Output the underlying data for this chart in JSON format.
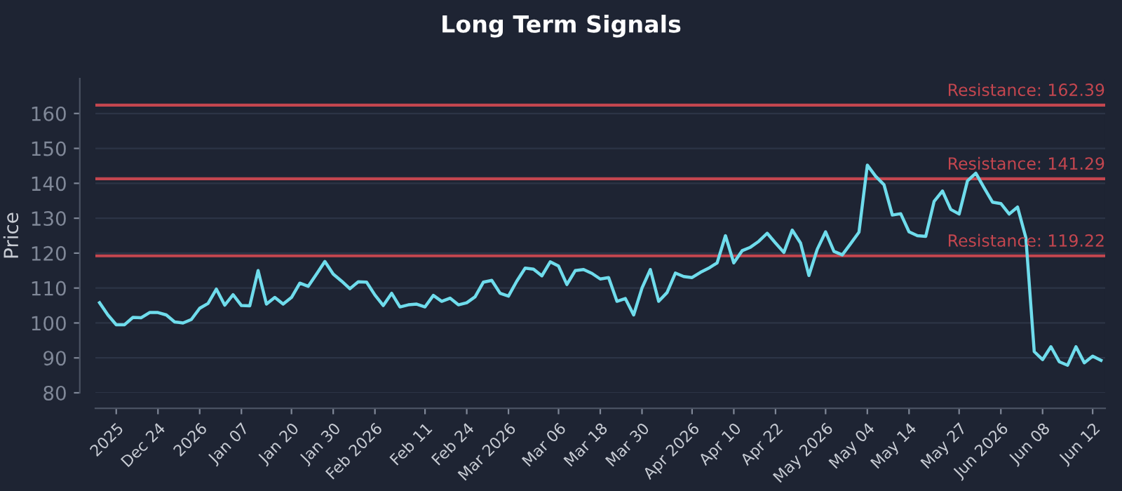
{
  "chart_data": {
    "type": "line",
    "title": "Long Term Signals",
    "ylabel": "Price",
    "categories": [
      null,
      null,
      "2025",
      null,
      null,
      null,
      null,
      "Dec 24",
      null,
      null,
      null,
      null,
      "2026",
      null,
      null,
      null,
      null,
      "Jan 07",
      null,
      null,
      null,
      null,
      null,
      "Jan 20",
      null,
      null,
      null,
      null,
      "Jan 30",
      null,
      null,
      null,
      null,
      "Feb 2026",
      null,
      null,
      null,
      null,
      null,
      "Feb 11",
      null,
      null,
      null,
      null,
      "Feb 24",
      null,
      null,
      null,
      null,
      "Mar 2026",
      null,
      null,
      null,
      null,
      null,
      "Mar 06",
      null,
      null,
      null,
      null,
      "Mar 18",
      null,
      null,
      null,
      null,
      "Mar 30",
      null,
      null,
      null,
      null,
      null,
      "Apr 2026",
      null,
      null,
      null,
      null,
      "Apr 10",
      null,
      null,
      null,
      null,
      "Apr 22",
      null,
      null,
      null,
      null,
      null,
      "May 2026",
      null,
      null,
      null,
      null,
      "May 04",
      null,
      null,
      null,
      null,
      "May 14",
      null,
      null,
      null,
      null,
      null,
      "May 27",
      null,
      null,
      null,
      null,
      "Jun 2026",
      null,
      null,
      null,
      null,
      "Jun 08",
      null,
      null,
      null,
      null,
      null,
      "Jun 12",
      null
    ],
    "series": [
      {
        "color": "#6fdcec",
        "values": [
          105.8,
          102.3,
          99.5,
          99.5,
          101.6,
          101.5,
          103,
          103,
          102.3,
          100.3,
          100,
          101,
          104.2,
          105.6,
          109.7,
          105.1,
          108.1,
          105,
          104.9,
          115,
          105.4,
          107.3,
          105.4,
          107.3,
          111.4,
          110.5,
          114,
          117.6,
          114,
          112,
          109.8,
          111.8,
          111.7,
          108,
          105,
          108.5,
          104.6,
          105.2,
          105.4,
          104.6,
          107.9,
          106.2,
          107.1,
          105.2,
          105.8,
          107.5,
          111.7,
          112.2,
          108.5,
          107.7,
          112,
          115.7,
          115.4,
          113.5,
          117.5,
          116.3,
          111,
          115,
          115.3,
          114.2,
          112.6,
          113,
          106.2,
          107,
          102.3,
          110,
          115.3,
          106.2,
          108.7,
          114.3,
          113.3,
          113,
          114.5,
          115.7,
          117.2,
          125,
          117.2,
          120.7,
          121.7,
          123.4,
          125.7,
          122.9,
          120.2,
          126.6,
          122.9,
          113.6,
          121.1,
          126.1,
          120.5,
          119.5,
          122.7,
          126,
          145.2,
          142,
          139.6,
          130.9,
          131.3,
          126.1,
          125,
          124.8,
          134.8,
          137.8,
          132.5,
          131.2,
          140.7,
          142.9,
          138.7,
          134.6,
          134.2,
          131.2,
          133.2,
          124.4,
          91.8,
          89.5,
          93.2,
          88.9,
          87.9,
          93.2,
          88.6,
          90.5,
          89.3
        ]
      }
    ],
    "ylim": [
      80,
      170
    ],
    "yticks": [
      80,
      90,
      100,
      110,
      120,
      130,
      140,
      150,
      160
    ],
    "grid": "y",
    "ref_lines": [
      {
        "axis": "y",
        "value": 162.39,
        "label": "Resistance: 162.39",
        "color": "#c4464f"
      },
      {
        "axis": "y",
        "value": 141.29,
        "label": "Resistance: 141.29",
        "color": "#c4464f"
      },
      {
        "axis": "y",
        "value": 119.22,
        "label": "Resistance: 119.22",
        "color": "#c4464f"
      }
    ]
  }
}
